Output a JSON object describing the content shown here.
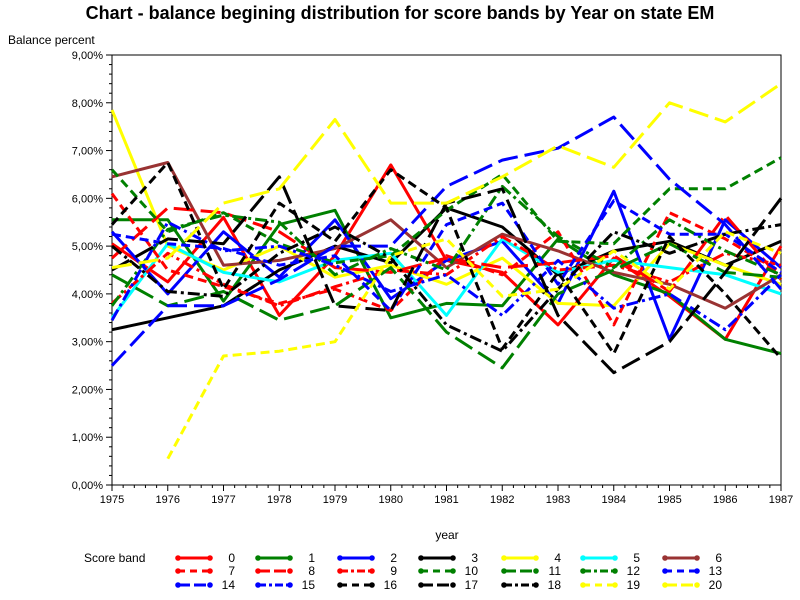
{
  "chart_data": {
    "type": "line",
    "title": "Chart - balance begining distribution for score bands by Year on state EM",
    "xlabel": "year",
    "ylabel": "Balance percent",
    "x": [
      1975,
      1976,
      1977,
      1978,
      1979,
      1980,
      1981,
      1982,
      1983,
      1984,
      1985,
      1986,
      1987
    ],
    "xlim": [
      1975,
      1987
    ],
    "ylim": [
      0,
      9
    ],
    "yticks": [
      0,
      1,
      2,
      3,
      4,
      5,
      6,
      7,
      8,
      9
    ],
    "ytick_labels": [
      "0,00%",
      "1,00%",
      "2,00%",
      "3,00%",
      "4,00%",
      "5,00%",
      "6,00%",
      "7,00%",
      "8,00%",
      "9,00%"
    ],
    "legend_title": "Score band",
    "legend_position": "bottom",
    "grid": false,
    "series": [
      {
        "name": "0",
        "color": "#ff0000",
        "style": "solid",
        "values": [
          5.05,
          4.25,
          5.6,
          3.55,
          4.8,
          6.7,
          4.7,
          4.45,
          3.35,
          4.75,
          3.95,
          3.05,
          5.0
        ]
      },
      {
        "name": "1",
        "color": "#008000",
        "style": "solid",
        "values": [
          5.55,
          5.55,
          3.85,
          5.45,
          5.75,
          3.5,
          3.8,
          3.75,
          5.15,
          4.4,
          4.0,
          3.05,
          2.75
        ]
      },
      {
        "name": "2",
        "color": "#0000ff",
        "style": "solid",
        "values": [
          5.3,
          4.0,
          5.3,
          4.35,
          5.55,
          3.9,
          4.7,
          5.1,
          3.8,
          6.15,
          3.05,
          5.55,
          4.55
        ]
      },
      {
        "name": "3",
        "color": "#000000",
        "style": "solid",
        "values": [
          3.25,
          3.5,
          3.75,
          4.5,
          5.0,
          4.65,
          5.8,
          5.4,
          4.4,
          4.9,
          5.1,
          4.6,
          5.1
        ]
      },
      {
        "name": "4",
        "color": "#ffff00",
        "style": "solid",
        "values": [
          7.85,
          5.0,
          4.5,
          5.0,
          4.35,
          4.6,
          4.2,
          4.75,
          3.8,
          3.75,
          5.05,
          4.6,
          4.2
        ]
      },
      {
        "name": "5",
        "color": "#00ffff",
        "style": "solid",
        "values": [
          3.5,
          5.05,
          4.45,
          4.25,
          4.7,
          4.85,
          3.55,
          5.15,
          4.45,
          4.7,
          4.55,
          4.4,
          4.0
        ]
      },
      {
        "name": "6",
        "color": "#993333",
        "style": "solid",
        "values": [
          6.45,
          6.75,
          4.6,
          4.7,
          4.95,
          5.55,
          4.55,
          5.25,
          4.9,
          4.45,
          4.2,
          3.7,
          4.4
        ]
      },
      {
        "name": "7",
        "color": "#ff0000",
        "style": "dash",
        "values": [
          6.1,
          4.5,
          4.15,
          3.8,
          4.1,
          3.65,
          4.8,
          4.4,
          5.3,
          3.35,
          5.7,
          5.15,
          4.45
        ]
      },
      {
        "name": "8",
        "color": "#ff0000",
        "style": "longdash",
        "values": [
          4.75,
          5.8,
          5.7,
          5.3,
          4.55,
          4.45,
          4.75,
          4.55,
          4.65,
          4.8,
          4.05,
          5.65,
          4.3
        ]
      },
      {
        "name": "9",
        "color": "#ff0000",
        "style": "dashdot",
        "values": [
          3.8,
          4.85,
          4.2,
          3.75,
          4.15,
          4.5,
          4.4,
          5.2,
          4.5,
          4.6,
          4.25,
          4.85,
          4.6
        ]
      },
      {
        "name": "10",
        "color": "#008000",
        "style": "dash",
        "values": [
          6.6,
          5.3,
          5.7,
          5.05,
          4.65,
          4.8,
          5.75,
          6.5,
          5.1,
          5.05,
          6.2,
          6.2,
          6.85
        ]
      },
      {
        "name": "11",
        "color": "#008000",
        "style": "longdash",
        "values": [
          4.4,
          3.75,
          4.05,
          3.45,
          3.75,
          4.55,
          3.2,
          2.45,
          4.0,
          4.5,
          5.05,
          4.45,
          4.35
        ]
      },
      {
        "name": "12",
        "color": "#008000",
        "style": "dashdot",
        "values": [
          3.75,
          5.35,
          5.65,
          5.5,
          4.4,
          4.95,
          4.5,
          6.25,
          5.2,
          4.55,
          5.55,
          4.9,
          4.4
        ]
      },
      {
        "name": "13",
        "color": "#0000ff",
        "style": "dash",
        "values": [
          5.25,
          5.05,
          4.95,
          4.6,
          4.8,
          3.65,
          5.45,
          5.9,
          4.2,
          5.95,
          5.25,
          5.25,
          4.45
        ]
      },
      {
        "name": "14",
        "color": "#0000ff",
        "style": "longdash",
        "values": [
          2.5,
          3.75,
          3.75,
          4.3,
          5.0,
          5.0,
          6.25,
          6.8,
          7.05,
          7.7,
          6.4,
          5.45,
          4.1
        ]
      },
      {
        "name": "15",
        "color": "#0000ff",
        "style": "dashdot",
        "values": [
          3.45,
          5.5,
          4.9,
          5.0,
          4.6,
          4.05,
          4.4,
          3.55,
          4.7,
          3.7,
          4.0,
          3.25,
          4.4
        ]
      },
      {
        "name": "16",
        "color": "#000000",
        "style": "dash",
        "values": [
          5.45,
          6.75,
          4.1,
          5.9,
          5.1,
          6.6,
          5.8,
          2.85,
          4.45,
          2.75,
          5.2,
          4.0,
          2.65
        ]
      },
      {
        "name": "17",
        "color": "#000000",
        "style": "longdash",
        "values": [
          4.5,
          5.15,
          5.05,
          6.45,
          3.75,
          3.65,
          5.9,
          6.2,
          3.55,
          2.35,
          3.0,
          4.45,
          6.0
        ]
      },
      {
        "name": "18",
        "color": "#000000",
        "style": "dashdot",
        "values": [
          5.0,
          4.05,
          3.95,
          4.85,
          5.4,
          4.75,
          3.35,
          2.8,
          4.1,
          5.3,
          4.85,
          5.25,
          5.45
        ]
      },
      {
        "name": "19",
        "color": "#ffff00",
        "style": "dash",
        "values": [
          null,
          0.55,
          2.7,
          2.8,
          3.0,
          4.8,
          5.15,
          3.95,
          4.1,
          4.9,
          4.1,
          5.3,
          4.85
        ]
      },
      {
        "name": "20",
        "color": "#ffff00",
        "style": "longdash",
        "values": [
          4.55,
          4.75,
          5.9,
          6.2,
          7.65,
          5.9,
          5.9,
          6.45,
          7.1,
          6.65,
          8.0,
          7.6,
          8.4
        ]
      }
    ]
  }
}
